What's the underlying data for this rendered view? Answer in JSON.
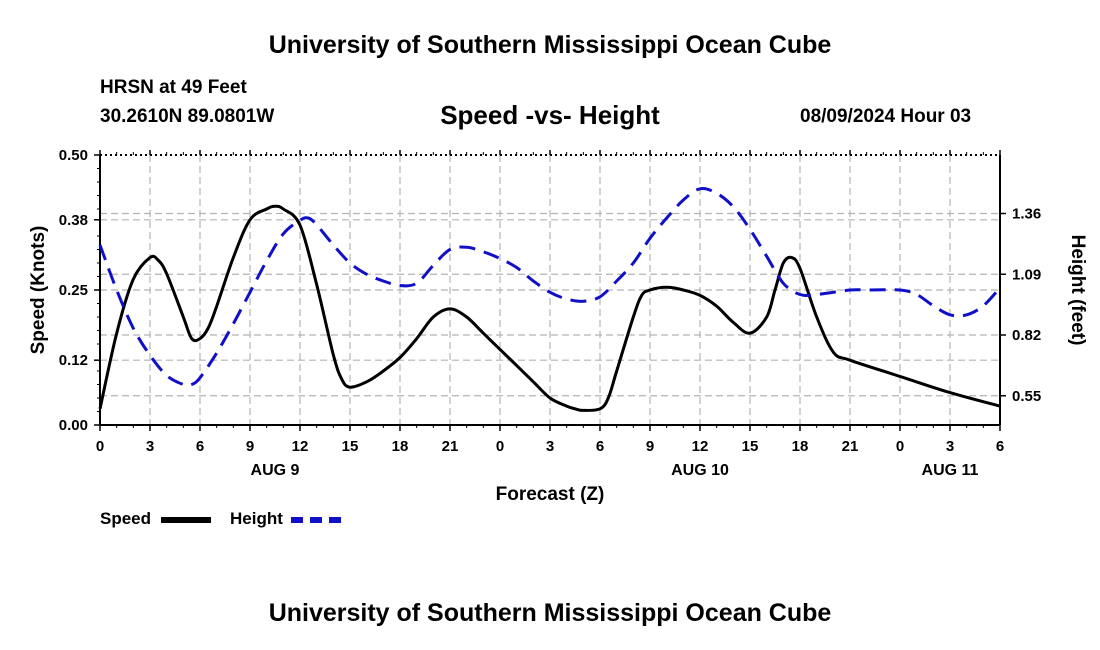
{
  "header": {
    "title": "University of Southern Mississippi Ocean Cube",
    "station": "HRSN at 49 Feet",
    "coordinates": "30.2610N  89.0801W",
    "subtitle": "Speed -vs- Height",
    "datetime": "08/09/2024 Hour 03"
  },
  "footer": {
    "title": "University of Southern Mississippi Ocean Cube"
  },
  "legend": {
    "speed_label": "Speed",
    "height_label": "Height"
  },
  "colors": {
    "speed": "#000000",
    "height": "#1010c8",
    "grid": "#b4b4b4"
  },
  "chart_data": {
    "type": "line",
    "title": "Speed -vs- Height",
    "xlabel": "Forecast (Z)",
    "ylabel": "Speed (Knots)",
    "y2label": "Height (feet)",
    "x_hours_from_start": [
      0,
      54
    ],
    "x_tick_labels": [
      "0",
      "3",
      "6",
      "9",
      "12",
      "15",
      "18",
      "21",
      "0",
      "3",
      "6",
      "9",
      "12",
      "15",
      "18",
      "21",
      "0",
      "3",
      "6"
    ],
    "date_labels": [
      {
        "label": "AUG 9",
        "hour": 10.5
      },
      {
        "label": "AUG 10",
        "hour": 36
      },
      {
        "label": "AUG 11",
        "hour": 51
      }
    ],
    "ylim": [
      0,
      0.5
    ],
    "y_ticks": [
      "0.00",
      "0.12",
      "0.25",
      "0.38",
      "0.50"
    ],
    "y2lim": [
      0.42,
      1.62
    ],
    "y2_ticks": [
      "0.55",
      "0.82",
      "1.09",
      "1.36"
    ],
    "grid": true,
    "series": [
      {
        "name": "Speed",
        "axis": "left",
        "style": "solid",
        "points": [
          [
            0,
            0.03
          ],
          [
            1,
            0.17
          ],
          [
            2,
            0.27
          ],
          [
            3,
            0.31
          ],
          [
            3.5,
            0.305
          ],
          [
            4,
            0.28
          ],
          [
            5,
            0.2
          ],
          [
            5.5,
            0.16
          ],
          [
            6,
            0.16
          ],
          [
            6.5,
            0.18
          ],
          [
            7,
            0.22
          ],
          [
            8,
            0.31
          ],
          [
            9,
            0.38
          ],
          [
            10,
            0.4
          ],
          [
            10.5,
            0.405
          ],
          [
            11,
            0.4
          ],
          [
            12,
            0.37
          ],
          [
            13,
            0.26
          ],
          [
            14,
            0.13
          ],
          [
            14.5,
            0.085
          ],
          [
            15,
            0.07
          ],
          [
            16,
            0.08
          ],
          [
            17,
            0.1
          ],
          [
            18,
            0.125
          ],
          [
            19,
            0.16
          ],
          [
            20,
            0.2
          ],
          [
            21,
            0.215
          ],
          [
            22,
            0.2
          ],
          [
            23,
            0.17
          ],
          [
            24,
            0.14
          ],
          [
            25,
            0.11
          ],
          [
            26,
            0.08
          ],
          [
            27,
            0.05
          ],
          [
            28,
            0.035
          ],
          [
            28.5,
            0.03
          ],
          [
            29,
            0.027
          ],
          [
            30,
            0.03
          ],
          [
            30.5,
            0.05
          ],
          [
            31,
            0.1
          ],
          [
            32,
            0.2
          ],
          [
            32.5,
            0.24
          ],
          [
            33,
            0.25
          ],
          [
            34,
            0.255
          ],
          [
            35,
            0.25
          ],
          [
            36,
            0.24
          ],
          [
            37,
            0.22
          ],
          [
            38,
            0.19
          ],
          [
            39,
            0.17
          ],
          [
            40,
            0.2
          ],
          [
            40.5,
            0.25
          ],
          [
            41,
            0.3
          ],
          [
            41.5,
            0.31
          ],
          [
            42,
            0.29
          ],
          [
            43,
            0.2
          ],
          [
            44,
            0.135
          ],
          [
            45,
            0.12
          ],
          [
            48,
            0.09
          ],
          [
            51,
            0.06
          ],
          [
            54,
            0.035
          ]
        ]
      },
      {
        "name": "Height",
        "axis": "right",
        "style": "dashed",
        "points": [
          [
            0,
            1.22
          ],
          [
            1,
            1.02
          ],
          [
            2,
            0.85
          ],
          [
            3,
            0.73
          ],
          [
            4,
            0.64
          ],
          [
            5,
            0.6
          ],
          [
            5.5,
            0.6
          ],
          [
            6,
            0.63
          ],
          [
            7,
            0.74
          ],
          [
            8,
            0.87
          ],
          [
            9,
            1.01
          ],
          [
            10,
            1.15
          ],
          [
            11,
            1.27
          ],
          [
            12,
            1.33
          ],
          [
            12.5,
            1.34
          ],
          [
            13,
            1.31
          ],
          [
            14,
            1.22
          ],
          [
            15,
            1.14
          ],
          [
            16,
            1.09
          ],
          [
            17,
            1.06
          ],
          [
            18,
            1.04
          ],
          [
            19,
            1.05
          ],
          [
            20,
            1.13
          ],
          [
            21,
            1.2
          ],
          [
            22,
            1.21
          ],
          [
            23,
            1.19
          ],
          [
            24,
            1.16
          ],
          [
            25,
            1.12
          ],
          [
            26,
            1.06
          ],
          [
            27,
            1.01
          ],
          [
            28,
            0.98
          ],
          [
            29,
            0.97
          ],
          [
            30,
            0.99
          ],
          [
            31,
            1.06
          ],
          [
            32,
            1.14
          ],
          [
            33,
            1.25
          ],
          [
            34,
            1.34
          ],
          [
            35,
            1.42
          ],
          [
            36,
            1.47
          ],
          [
            37,
            1.45
          ],
          [
            38,
            1.39
          ],
          [
            39,
            1.29
          ],
          [
            40,
            1.17
          ],
          [
            41,
            1.05
          ],
          [
            42,
            1.0
          ],
          [
            43,
            1.0
          ],
          [
            45,
            1.02
          ],
          [
            46,
            1.02
          ],
          [
            48,
            1.02
          ],
          [
            49,
            1.0
          ],
          [
            50,
            0.95
          ],
          [
            51,
            0.91
          ],
          [
            52,
            0.91
          ],
          [
            53,
            0.95
          ],
          [
            54,
            1.03
          ]
        ]
      }
    ]
  }
}
